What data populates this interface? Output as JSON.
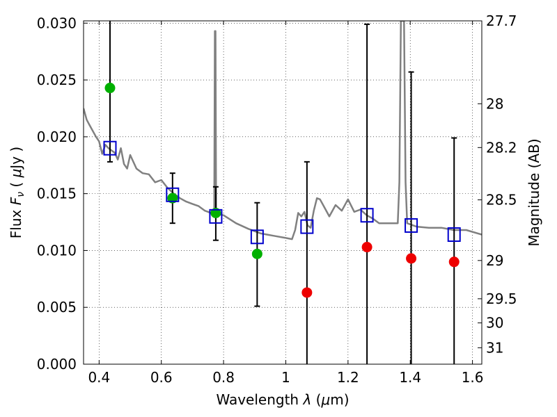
{
  "chart_data": {
    "type": "scatter",
    "xlabel_parts": [
      "Wavelength  ",
      "λ",
      " (",
      "μ",
      "m)"
    ],
    "ylabel_parts": [
      "Flux  ",
      "F",
      "ν",
      "  ( ",
      "μ",
      "Jy )"
    ],
    "y2label": "Magnitude (AB)",
    "xlim": [
      0.35,
      1.63
    ],
    "ylim": [
      0.0,
      0.0302
    ],
    "grid": true,
    "xticks": [
      0.4,
      0.6,
      0.8,
      1.0,
      1.2,
      1.4,
      1.6
    ],
    "xtick_labels": [
      "0.4",
      "0.6",
      "0.8",
      "1",
      "1.2",
      "1.4",
      "1.6"
    ],
    "yticks": [
      0.0,
      0.005,
      0.01,
      0.015,
      0.02,
      0.025,
      0.03
    ],
    "ytick_labels": [
      "0.000",
      "0.005",
      "0.010",
      "0.015",
      "0.020",
      "0.025",
      "0.030"
    ],
    "y2_ticks": [
      {
        "label": "27.7",
        "mag": 27.7
      },
      {
        "label": "28",
        "mag": 28.0
      },
      {
        "label": "28.2",
        "mag": 28.2
      },
      {
        "label": "28.5",
        "mag": 28.5
      },
      {
        "label": "29",
        "mag": 29.0
      },
      {
        "label": "29.5",
        "mag": 29.5
      },
      {
        "label": "30",
        "mag": 30.0
      },
      {
        "label": "31",
        "mag": 31.0
      }
    ],
    "colors": {
      "green": "#00b000",
      "red": "#ee0000",
      "square": "#0000cc",
      "sed": "#808080",
      "errorbar": "#000000"
    },
    "series": [
      {
        "kind": "observed",
        "points": [
          {
            "x": 0.435,
            "y": 0.0243,
            "ylow": 0.0178,
            "yhigh": 0.0302,
            "color": "green"
          },
          {
            "x": 0.636,
            "y": 0.0146,
            "ylow": 0.0124,
            "yhigh": 0.0168,
            "color": "green"
          },
          {
            "x": 0.775,
            "y": 0.0133,
            "ylow": 0.0109,
            "yhigh": 0.0156,
            "color": "green"
          },
          {
            "x": 0.908,
            "y": 0.0097,
            "ylow": 0.0051,
            "yhigh": 0.0142,
            "color": "green"
          },
          {
            "x": 1.068,
            "y": 0.0063,
            "ylow": 0.0,
            "yhigh": 0.0178,
            "color": "red"
          },
          {
            "x": 1.261,
            "y": 0.0103,
            "ylow": 0.0,
            "yhigh": 0.0299,
            "color": "red"
          },
          {
            "x": 1.403,
            "y": 0.0093,
            "ylow": 0.0,
            "yhigh": 0.0257,
            "color": "red"
          },
          {
            "x": 1.541,
            "y": 0.009,
            "ylow": 0.0,
            "yhigh": 0.0199,
            "color": "red"
          }
        ]
      },
      {
        "kind": "model-band",
        "points": [
          {
            "x": 0.435,
            "y": 0.019
          },
          {
            "x": 0.636,
            "y": 0.0149
          },
          {
            "x": 0.775,
            "y": 0.013
          },
          {
            "x": 0.908,
            "y": 0.0112
          },
          {
            "x": 1.068,
            "y": 0.0121
          },
          {
            "x": 1.261,
            "y": 0.0131
          },
          {
            "x": 1.403,
            "y": 0.0122
          },
          {
            "x": 1.541,
            "y": 0.0114
          }
        ]
      },
      {
        "kind": "sed-template",
        "x": [
          0.35,
          0.36,
          0.37,
          0.38,
          0.39,
          0.4,
          0.41,
          0.42,
          0.43,
          0.44,
          0.45,
          0.46,
          0.47,
          0.48,
          0.49,
          0.5,
          0.52,
          0.54,
          0.56,
          0.58,
          0.6,
          0.62,
          0.64,
          0.66,
          0.68,
          0.7,
          0.72,
          0.74,
          0.76,
          0.77,
          0.772,
          0.774,
          0.776,
          0.78,
          0.8,
          0.84,
          0.88,
          0.92,
          0.96,
          1.0,
          1.02,
          1.03,
          1.04,
          1.05,
          1.06,
          1.07,
          1.08,
          1.09,
          1.1,
          1.11,
          1.12,
          1.14,
          1.16,
          1.18,
          1.2,
          1.22,
          1.24,
          1.26,
          1.28,
          1.3,
          1.32,
          1.34,
          1.36,
          1.365,
          1.37,
          1.375,
          1.38,
          1.385,
          1.39,
          1.4,
          1.42,
          1.46,
          1.5,
          1.54,
          1.58,
          1.63
        ],
        "y": [
          0.0225,
          0.0215,
          0.021,
          0.0205,
          0.02,
          0.0196,
          0.0185,
          0.0193,
          0.019,
          0.0188,
          0.0186,
          0.018,
          0.019,
          0.0176,
          0.0172,
          0.0184,
          0.0172,
          0.0168,
          0.0167,
          0.016,
          0.0162,
          0.0155,
          0.015,
          0.0146,
          0.0143,
          0.0141,
          0.0139,
          0.0135,
          0.0133,
          0.0132,
          0.0293,
          0.0293,
          0.0133,
          0.0132,
          0.0131,
          0.0124,
          0.0119,
          0.0115,
          0.0113,
          0.0111,
          0.011,
          0.0118,
          0.0133,
          0.013,
          0.0134,
          0.0122,
          0.012,
          0.0135,
          0.0146,
          0.0145,
          0.014,
          0.013,
          0.014,
          0.0135,
          0.0145,
          0.0134,
          0.0136,
          0.0131,
          0.0128,
          0.0124,
          0.0124,
          0.0124,
          0.0124,
          0.016,
          0.0302,
          0.0302,
          0.0302,
          0.016,
          0.0124,
          0.0123,
          0.0121,
          0.012,
          0.012,
          0.0118,
          0.0118,
          0.0114
        ]
      }
    ]
  }
}
